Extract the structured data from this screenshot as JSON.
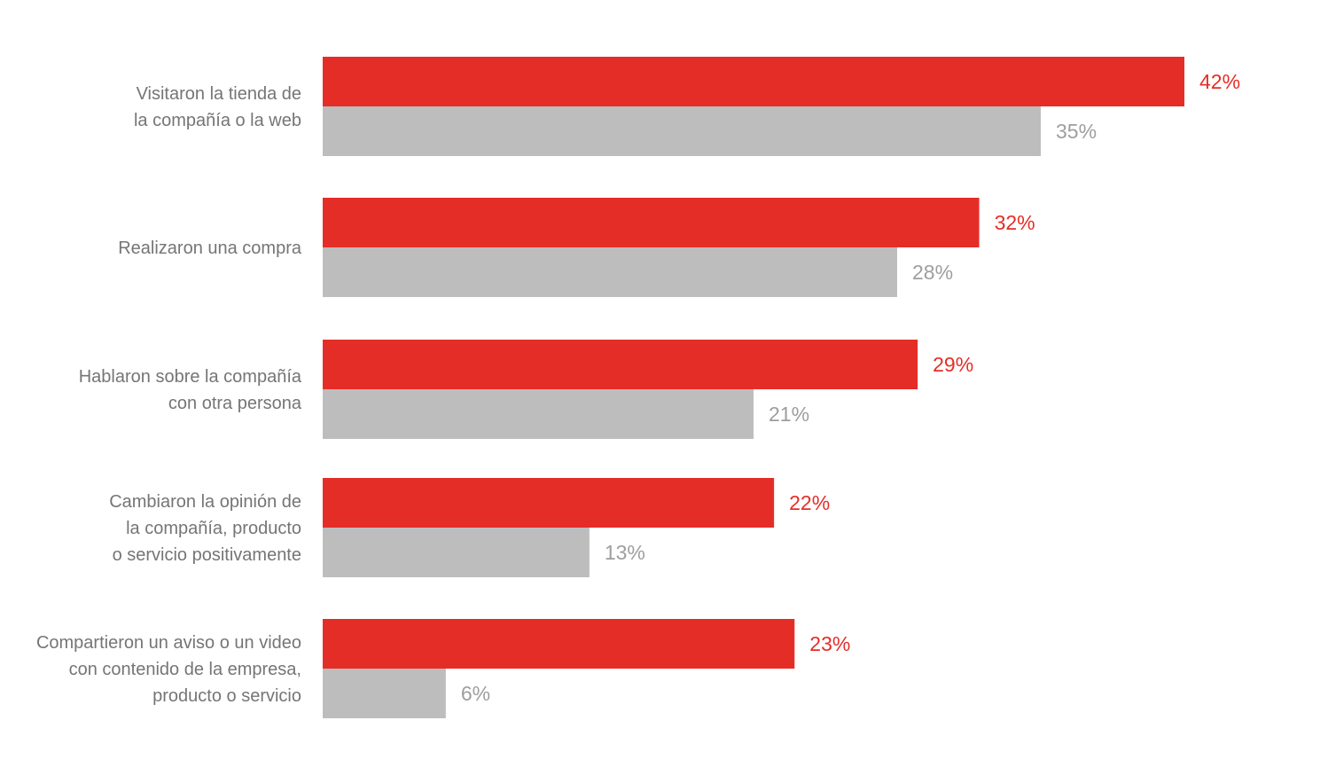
{
  "chart_data": {
    "type": "bar",
    "orientation": "horizontal",
    "title": "",
    "xlabel": "",
    "ylabel": "",
    "xlim": [
      0,
      42
    ],
    "grid": false,
    "legend": "none",
    "categories": [
      [
        "Visitaron la tienda de",
        "la compañía o la web"
      ],
      [
        "Realizaron una compra"
      ],
      [
        "Hablaron sobre la compañía",
        "con otra persona"
      ],
      [
        "Cambiaron la opinión de",
        "la compañía, producto",
        "o servicio positivamente"
      ],
      [
        "Compartieron un aviso o un video",
        "con contenido de la empresa,",
        "producto o servicio"
      ]
    ],
    "series": [
      {
        "values": [
          42,
          32,
          29,
          22,
          23
        ],
        "labels": [
          "42%",
          "32%",
          "29%",
          "22%",
          "23%"
        ],
        "color": "#e52d27",
        "label_color": "#e52d27"
      },
      {
        "values": [
          35,
          28,
          21,
          13,
          6
        ],
        "labels": [
          "35%",
          "28%",
          "21%",
          "13%",
          "6%"
        ],
        "color": "#bdbdbd",
        "label_color": "#9e9e9e"
      }
    ]
  }
}
